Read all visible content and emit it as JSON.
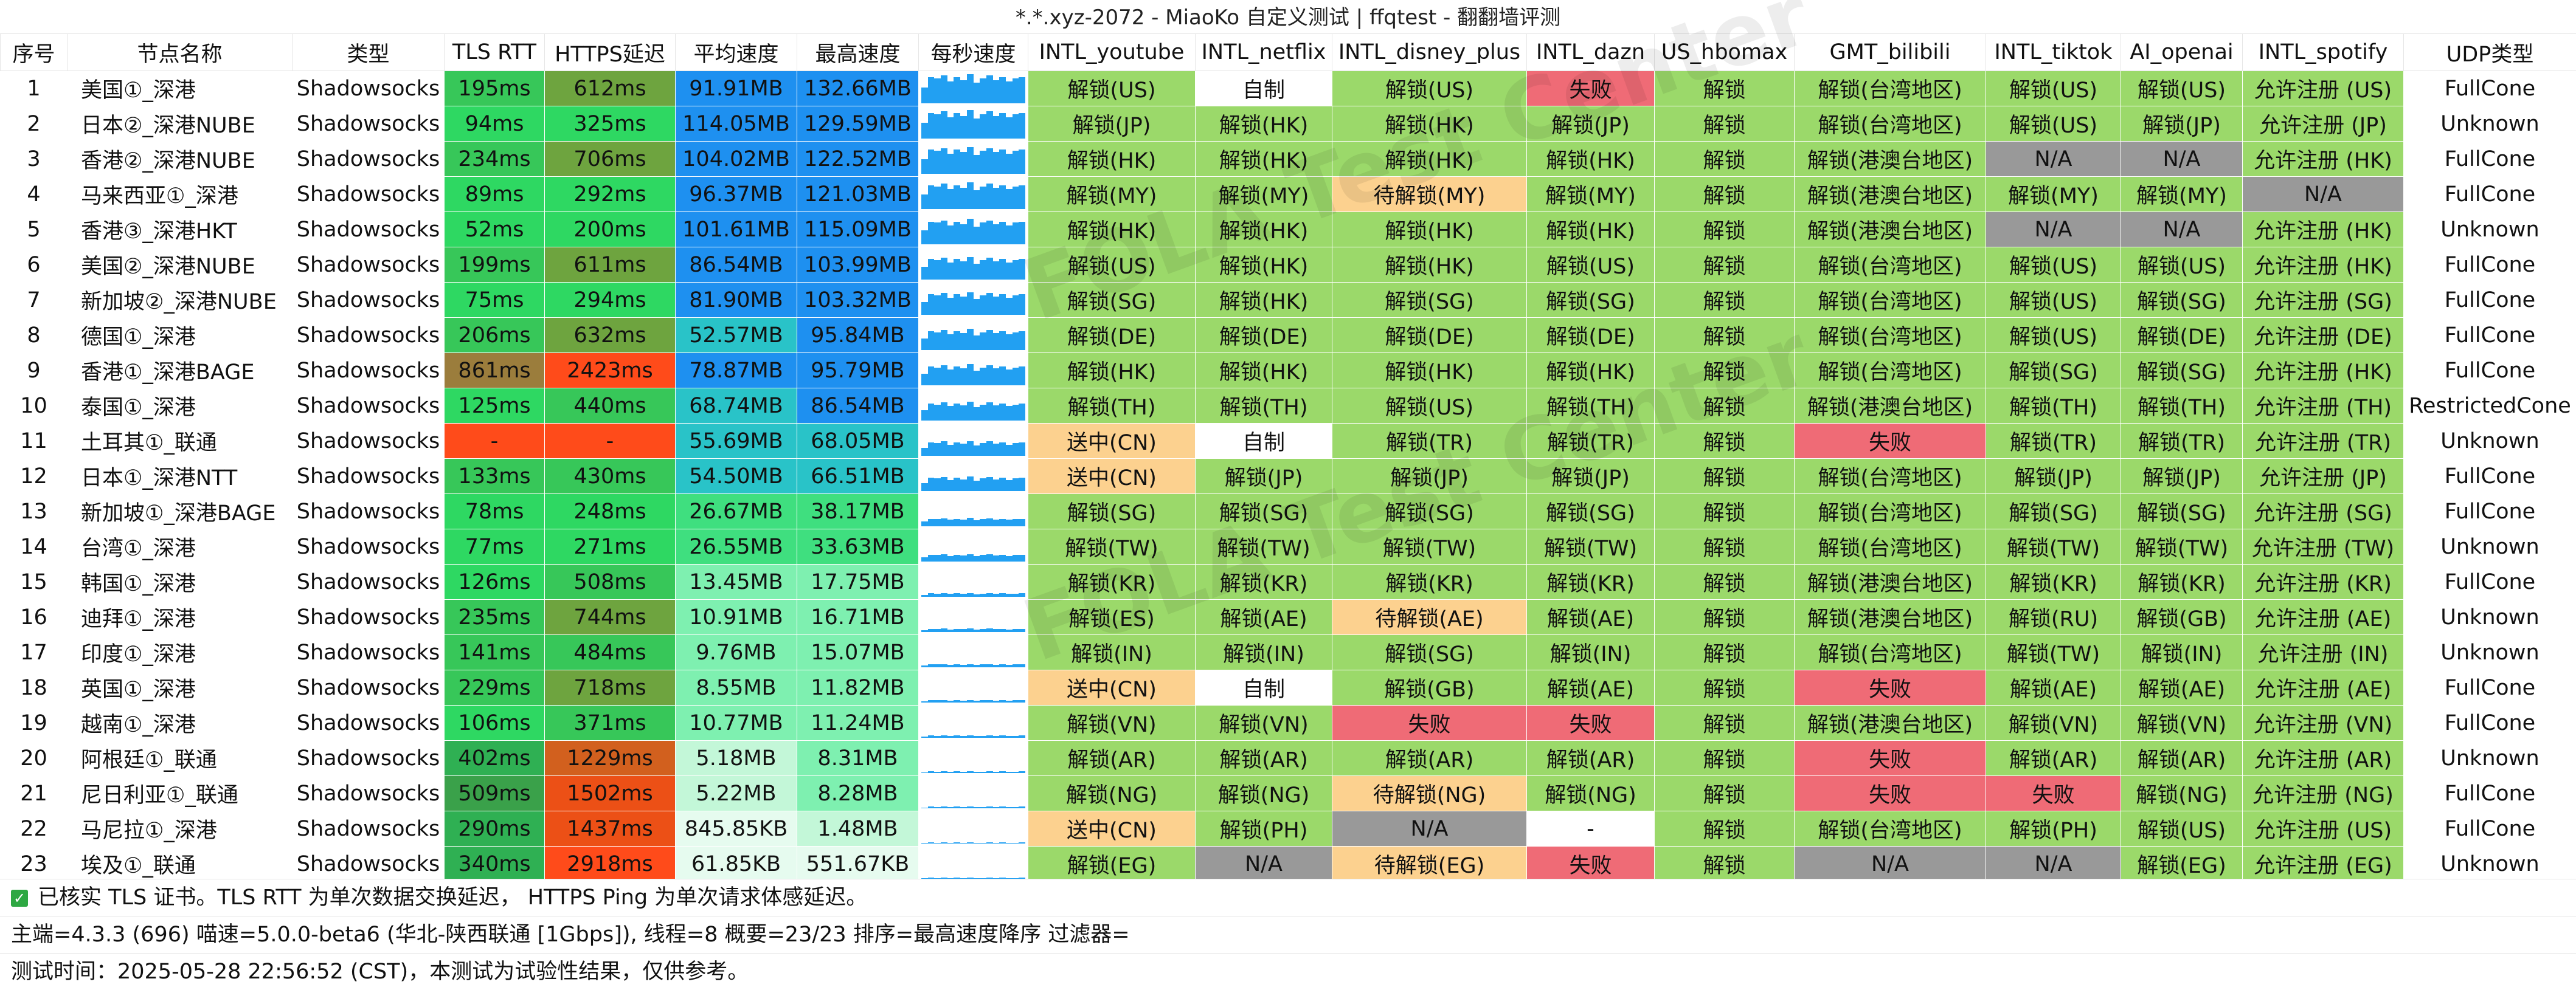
{
  "window": {
    "title": "*.*.xyz-2072 - MiaoKo 自定义测试 | ffqtest - 翻翻墙评测"
  },
  "watermark": "FOLA Test Center",
  "columns": [
    "序号",
    "节点名称",
    "类型",
    "TLS RTT",
    "HTTPS延迟",
    "平均速度",
    "最高速度",
    "每秒速度",
    "INTL_youtube",
    "INTL_netflix",
    "INTL_disney_plus",
    "INTL_dazn",
    "US_hbomax",
    "GMT_bilibili",
    "INTL_tiktok",
    "AI_openai",
    "INTL_spotify",
    "UDP类型"
  ],
  "colors": {
    "header_bg": "#ffffff",
    "unlock_green": "#9bd96a",
    "fail_red": "#ef6b76",
    "pending_orange": "#fcd18f",
    "na_gray": "#999999",
    "self_white": "#ffffff",
    "spark_blue": "#22a0f2"
  },
  "rows": [
    {
      "idx": "1",
      "name": "美国①_深港",
      "type": "Shadowsocks",
      "tls": "195ms",
      "https": "612ms",
      "avg": "91.91MB",
      "max": "132.66MB",
      "youtube": "解锁(US)",
      "netflix": "自制",
      "disney": "解锁(US)",
      "dazn": "失败",
      "hbomax": "解锁",
      "bilibili": "解锁(台湾地区)",
      "tiktok": "解锁(US)",
      "openai": "解锁(US)",
      "spotify": "允许注册 (US)",
      "udp": "FullCone"
    },
    {
      "idx": "2",
      "name": "日本②_深港NUBE",
      "type": "Shadowsocks",
      "tls": "94ms",
      "https": "325ms",
      "avg": "114.05MB",
      "max": "129.59MB",
      "youtube": "解锁(JP)",
      "netflix": "解锁(HK)",
      "disney": "解锁(HK)",
      "dazn": "解锁(JP)",
      "hbomax": "解锁",
      "bilibili": "解锁(台湾地区)",
      "tiktok": "解锁(US)",
      "openai": "解锁(JP)",
      "spotify": "允许注册 (JP)",
      "udp": "Unknown"
    },
    {
      "idx": "3",
      "name": "香港②_深港NUBE",
      "type": "Shadowsocks",
      "tls": "234ms",
      "https": "706ms",
      "avg": "104.02MB",
      "max": "122.52MB",
      "youtube": "解锁(HK)",
      "netflix": "解锁(HK)",
      "disney": "解锁(HK)",
      "dazn": "解锁(HK)",
      "hbomax": "解锁",
      "bilibili": "解锁(港澳台地区)",
      "tiktok": "N/A",
      "openai": "N/A",
      "spotify": "允许注册 (HK)",
      "udp": "FullCone"
    },
    {
      "idx": "4",
      "name": "马来西亚①_深港",
      "type": "Shadowsocks",
      "tls": "89ms",
      "https": "292ms",
      "avg": "96.37MB",
      "max": "121.03MB",
      "youtube": "解锁(MY)",
      "netflix": "解锁(MY)",
      "disney": "待解锁(MY)",
      "dazn": "解锁(MY)",
      "hbomax": "解锁",
      "bilibili": "解锁(港澳台地区)",
      "tiktok": "解锁(MY)",
      "openai": "解锁(MY)",
      "spotify": "N/A",
      "udp": "FullCone"
    },
    {
      "idx": "5",
      "name": "香港③_深港HKT",
      "type": "Shadowsocks",
      "tls": "52ms",
      "https": "200ms",
      "avg": "101.61MB",
      "max": "115.09MB",
      "youtube": "解锁(HK)",
      "netflix": "解锁(HK)",
      "disney": "解锁(HK)",
      "dazn": "解锁(HK)",
      "hbomax": "解锁",
      "bilibili": "解锁(港澳台地区)",
      "tiktok": "N/A",
      "openai": "N/A",
      "spotify": "允许注册 (HK)",
      "udp": "Unknown"
    },
    {
      "idx": "6",
      "name": "美国②_深港NUBE",
      "type": "Shadowsocks",
      "tls": "199ms",
      "https": "611ms",
      "avg": "86.54MB",
      "max": "103.99MB",
      "youtube": "解锁(US)",
      "netflix": "解锁(HK)",
      "disney": "解锁(HK)",
      "dazn": "解锁(US)",
      "hbomax": "解锁",
      "bilibili": "解锁(台湾地区)",
      "tiktok": "解锁(US)",
      "openai": "解锁(US)",
      "spotify": "允许注册 (HK)",
      "udp": "FullCone"
    },
    {
      "idx": "7",
      "name": "新加坡②_深港NUBE",
      "type": "Shadowsocks",
      "tls": "75ms",
      "https": "294ms",
      "avg": "81.90MB",
      "max": "103.32MB",
      "youtube": "解锁(SG)",
      "netflix": "解锁(HK)",
      "disney": "解锁(SG)",
      "dazn": "解锁(SG)",
      "hbomax": "解锁",
      "bilibili": "解锁(台湾地区)",
      "tiktok": "解锁(US)",
      "openai": "解锁(SG)",
      "spotify": "允许注册 (SG)",
      "udp": "FullCone"
    },
    {
      "idx": "8",
      "name": "德国①_深港",
      "type": "Shadowsocks",
      "tls": "206ms",
      "https": "632ms",
      "avg": "52.57MB",
      "max": "95.84MB",
      "youtube": "解锁(DE)",
      "netflix": "解锁(DE)",
      "disney": "解锁(DE)",
      "dazn": "解锁(DE)",
      "hbomax": "解锁",
      "bilibili": "解锁(台湾地区)",
      "tiktok": "解锁(US)",
      "openai": "解锁(DE)",
      "spotify": "允许注册 (DE)",
      "udp": "FullCone"
    },
    {
      "idx": "9",
      "name": "香港①_深港BAGE",
      "type": "Shadowsocks",
      "tls": "861ms",
      "https": "2423ms",
      "avg": "78.87MB",
      "max": "95.79MB",
      "youtube": "解锁(HK)",
      "netflix": "解锁(HK)",
      "disney": "解锁(HK)",
      "dazn": "解锁(HK)",
      "hbomax": "解锁",
      "bilibili": "解锁(台湾地区)",
      "tiktok": "解锁(SG)",
      "openai": "解锁(SG)",
      "spotify": "允许注册 (HK)",
      "udp": "FullCone"
    },
    {
      "idx": "10",
      "name": "泰国①_深港",
      "type": "Shadowsocks",
      "tls": "125ms",
      "https": "440ms",
      "avg": "68.74MB",
      "max": "86.54MB",
      "youtube": "解锁(TH)",
      "netflix": "解锁(TH)",
      "disney": "解锁(US)",
      "dazn": "解锁(TH)",
      "hbomax": "解锁",
      "bilibili": "解锁(港澳台地区)",
      "tiktok": "解锁(TH)",
      "openai": "解锁(TH)",
      "spotify": "允许注册 (TH)",
      "udp": "RestrictedCone"
    },
    {
      "idx": "11",
      "name": "土耳其①_联通",
      "type": "Shadowsocks",
      "tls": "-",
      "https": "-",
      "avg": "55.69MB",
      "max": "68.05MB",
      "youtube": "送中(CN)",
      "netflix": "自制",
      "disney": "解锁(TR)",
      "dazn": "解锁(TR)",
      "hbomax": "解锁",
      "bilibili": "失败",
      "tiktok": "解锁(TR)",
      "openai": "解锁(TR)",
      "spotify": "允许注册 (TR)",
      "udp": "Unknown"
    },
    {
      "idx": "12",
      "name": "日本①_深港NTT",
      "type": "Shadowsocks",
      "tls": "133ms",
      "https": "430ms",
      "avg": "54.50MB",
      "max": "66.51MB",
      "youtube": "送中(CN)",
      "netflix": "解锁(JP)",
      "disney": "解锁(JP)",
      "dazn": "解锁(JP)",
      "hbomax": "解锁",
      "bilibili": "解锁(台湾地区)",
      "tiktok": "解锁(JP)",
      "openai": "解锁(JP)",
      "spotify": "允许注册 (JP)",
      "udp": "FullCone"
    },
    {
      "idx": "13",
      "name": "新加坡①_深港BAGE",
      "type": "Shadowsocks",
      "tls": "78ms",
      "https": "248ms",
      "avg": "26.67MB",
      "max": "38.17MB",
      "youtube": "解锁(SG)",
      "netflix": "解锁(SG)",
      "disney": "解锁(SG)",
      "dazn": "解锁(SG)",
      "hbomax": "解锁",
      "bilibili": "解锁(台湾地区)",
      "tiktok": "解锁(SG)",
      "openai": "解锁(SG)",
      "spotify": "允许注册 (SG)",
      "udp": "FullCone"
    },
    {
      "idx": "14",
      "name": "台湾①_深港",
      "type": "Shadowsocks",
      "tls": "77ms",
      "https": "271ms",
      "avg": "26.55MB",
      "max": "33.63MB",
      "youtube": "解锁(TW)",
      "netflix": "解锁(TW)",
      "disney": "解锁(TW)",
      "dazn": "解锁(TW)",
      "hbomax": "解锁",
      "bilibili": "解锁(台湾地区)",
      "tiktok": "解锁(TW)",
      "openai": "解锁(TW)",
      "spotify": "允许注册 (TW)",
      "udp": "Unknown"
    },
    {
      "idx": "15",
      "name": "韩国①_深港",
      "type": "Shadowsocks",
      "tls": "126ms",
      "https": "508ms",
      "avg": "13.45MB",
      "max": "17.75MB",
      "youtube": "解锁(KR)",
      "netflix": "解锁(KR)",
      "disney": "解锁(KR)",
      "dazn": "解锁(KR)",
      "hbomax": "解锁",
      "bilibili": "解锁(港澳台地区)",
      "tiktok": "解锁(KR)",
      "openai": "解锁(KR)",
      "spotify": "允许注册 (KR)",
      "udp": "FullCone"
    },
    {
      "idx": "16",
      "name": "迪拜①_深港",
      "type": "Shadowsocks",
      "tls": "235ms",
      "https": "744ms",
      "avg": "10.91MB",
      "max": "16.71MB",
      "youtube": "解锁(ES)",
      "netflix": "解锁(AE)",
      "disney": "待解锁(AE)",
      "dazn": "解锁(AE)",
      "hbomax": "解锁",
      "bilibili": "解锁(港澳台地区)",
      "tiktok": "解锁(RU)",
      "openai": "解锁(GB)",
      "spotify": "允许注册 (AE)",
      "udp": "Unknown"
    },
    {
      "idx": "17",
      "name": "印度①_深港",
      "type": "Shadowsocks",
      "tls": "141ms",
      "https": "484ms",
      "avg": "9.76MB",
      "max": "15.07MB",
      "youtube": "解锁(IN)",
      "netflix": "解锁(IN)",
      "disney": "解锁(SG)",
      "dazn": "解锁(IN)",
      "hbomax": "解锁",
      "bilibili": "解锁(台湾地区)",
      "tiktok": "解锁(TW)",
      "openai": "解锁(IN)",
      "spotify": "允许注册 (IN)",
      "udp": "Unknown"
    },
    {
      "idx": "18",
      "name": "英国①_深港",
      "type": "Shadowsocks",
      "tls": "229ms",
      "https": "718ms",
      "avg": "8.55MB",
      "max": "11.82MB",
      "youtube": "送中(CN)",
      "netflix": "自制",
      "disney": "解锁(GB)",
      "dazn": "解锁(AE)",
      "hbomax": "解锁",
      "bilibili": "失败",
      "tiktok": "解锁(AE)",
      "openai": "解锁(AE)",
      "spotify": "允许注册 (AE)",
      "udp": "FullCone"
    },
    {
      "idx": "19",
      "name": "越南①_深港",
      "type": "Shadowsocks",
      "tls": "106ms",
      "https": "371ms",
      "avg": "10.77MB",
      "max": "11.24MB",
      "youtube": "解锁(VN)",
      "netflix": "解锁(VN)",
      "disney": "失败",
      "dazn": "失败",
      "hbomax": "解锁",
      "bilibili": "解锁(港澳台地区)",
      "tiktok": "解锁(VN)",
      "openai": "解锁(VN)",
      "spotify": "允许注册 (VN)",
      "udp": "FullCone"
    },
    {
      "idx": "20",
      "name": "阿根廷①_联通",
      "type": "Shadowsocks",
      "tls": "402ms",
      "https": "1229ms",
      "avg": "5.18MB",
      "max": "8.31MB",
      "youtube": "解锁(AR)",
      "netflix": "解锁(AR)",
      "disney": "解锁(AR)",
      "dazn": "解锁(AR)",
      "hbomax": "解锁",
      "bilibili": "失败",
      "tiktok": "解锁(AR)",
      "openai": "解锁(AR)",
      "spotify": "允许注册 (AR)",
      "udp": "Unknown"
    },
    {
      "idx": "21",
      "name": "尼日利亚①_联通",
      "type": "Shadowsocks",
      "tls": "509ms",
      "https": "1502ms",
      "avg": "5.22MB",
      "max": "8.28MB",
      "youtube": "解锁(NG)",
      "netflix": "解锁(NG)",
      "disney": "待解锁(NG)",
      "dazn": "解锁(NG)",
      "hbomax": "解锁",
      "bilibili": "失败",
      "tiktok": "失败",
      "openai": "解锁(NG)",
      "spotify": "允许注册 (NG)",
      "udp": "FullCone"
    },
    {
      "idx": "22",
      "name": "马尼拉①_深港",
      "type": "Shadowsocks",
      "tls": "290ms",
      "https": "1437ms",
      "avg": "845.85KB",
      "max": "1.48MB",
      "youtube": "送中(CN)",
      "netflix": "解锁(PH)",
      "disney": "N/A",
      "dazn": "-",
      "hbomax": "解锁",
      "bilibili": "解锁(台湾地区)",
      "tiktok": "解锁(PH)",
      "openai": "解锁(US)",
      "spotify": "允许注册 (US)",
      "udp": "FullCone"
    },
    {
      "idx": "23",
      "name": "埃及①_联通",
      "type": "Shadowsocks",
      "tls": "340ms",
      "https": "2918ms",
      "avg": "61.85KB",
      "max": "551.67KB",
      "youtube": "解锁(EG)",
      "netflix": "N/A",
      "disney": "待解锁(EG)",
      "dazn": "失败",
      "hbomax": "解锁",
      "bilibili": "N/A",
      "tiktok": "N/A",
      "openai": "解锁(EG)",
      "spotify": "允许注册 (EG)",
      "udp": "Unknown"
    }
  ],
  "footer": {
    "note": "已核实 TLS 证书。TLS RTT 为单次数据交换延迟， HTTPS Ping 为单次请求体感延迟。",
    "info": "主端=4.3.3 (696) 喵速=5.0.0-beta6 (华北-陕西联通 [1Gbps]), 线程=8 概要=23/23 排序=最高速度降序 过滤器=",
    "time": "测试时间：2025-05-28 22:56:52 (CST)，本测试为试验性结果，仅供参考。"
  }
}
